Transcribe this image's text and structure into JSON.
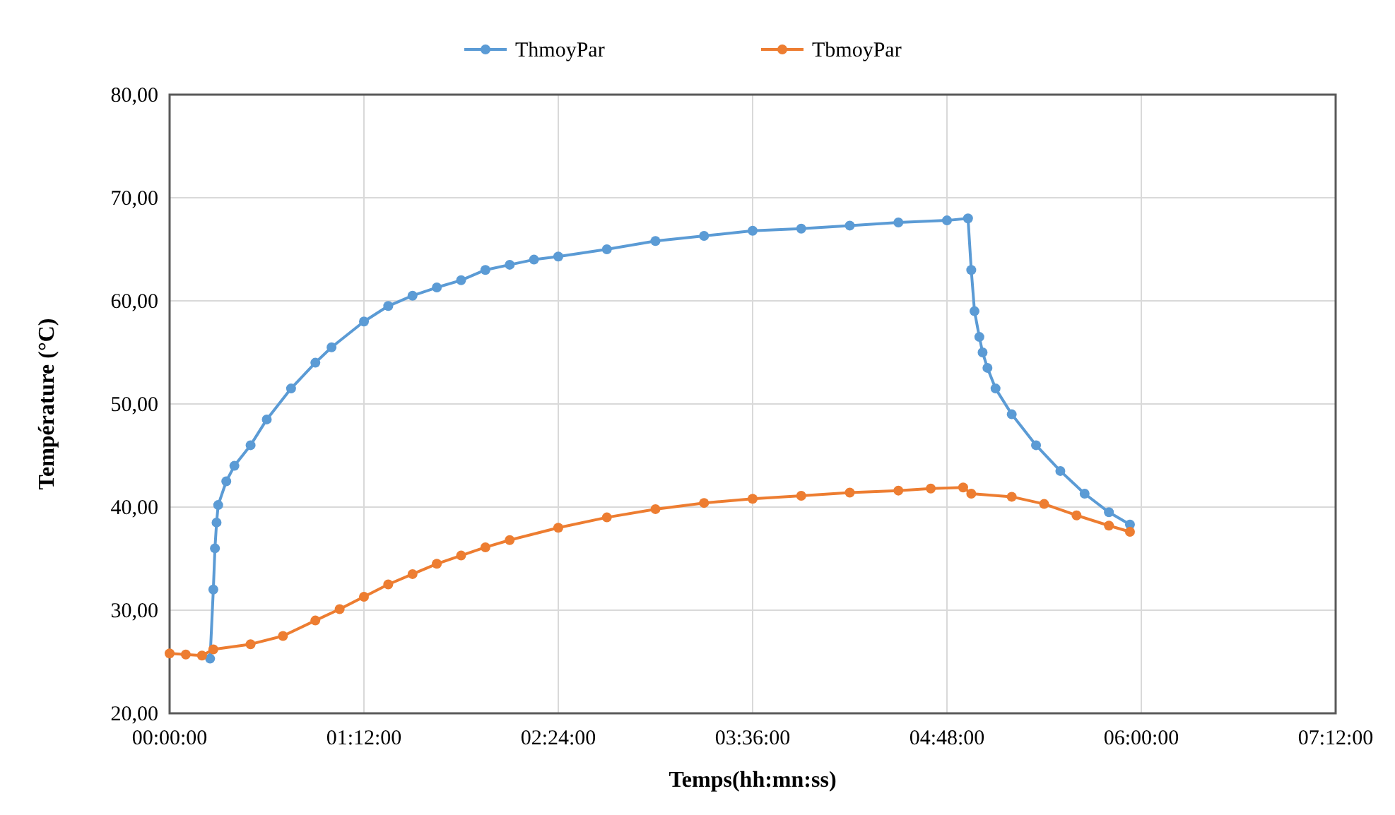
{
  "chart_data": {
    "type": "line",
    "xlabel": "Temps(hh:mn:ss)",
    "ylabel": "Température (°C)",
    "xlim": [
      0,
      7.2
    ],
    "ylim": [
      20,
      80
    ],
    "xticks": [
      {
        "value": 0,
        "label": "00:00:00"
      },
      {
        "value": 1.2,
        "label": "01:12:00"
      },
      {
        "value": 2.4,
        "label": "02:24:00"
      },
      {
        "value": 3.6,
        "label": "03:36:00"
      },
      {
        "value": 4.8,
        "label": "04:48:00"
      },
      {
        "value": 6,
        "label": "06:00:00"
      },
      {
        "value": 7.2,
        "label": "07:12:00"
      }
    ],
    "yticks": [
      {
        "value": 20,
        "label": "20,00"
      },
      {
        "value": 30,
        "label": "30,00"
      },
      {
        "value": 40,
        "label": "40,00"
      },
      {
        "value": 50,
        "label": "50,00"
      },
      {
        "value": 60,
        "label": "60,00"
      },
      {
        "value": 70,
        "label": "70,00"
      },
      {
        "value": 80,
        "label": "80,00"
      }
    ],
    "grid": true,
    "legend": "top",
    "marker": "circle",
    "line_style": "solid",
    "series": [
      {
        "name": "ThmoyPar",
        "color": "#5b9bd5",
        "x": [
          0.25,
          0.27,
          0.28,
          0.29,
          0.3,
          0.35,
          0.4,
          0.5,
          0.6,
          0.75,
          0.9,
          1.0,
          1.2,
          1.35,
          1.5,
          1.65,
          1.8,
          1.95,
          2.1,
          2.25,
          2.4,
          2.7,
          3.0,
          3.3,
          3.6,
          3.9,
          4.2,
          4.5,
          4.8,
          4.93,
          4.95,
          4.97,
          5.0,
          5.02,
          5.05,
          5.1,
          5.2,
          5.35,
          5.5,
          5.65,
          5.8,
          5.93
        ],
        "values": [
          25.3,
          32,
          36,
          38.5,
          40.2,
          42.5,
          44,
          46,
          48.5,
          51.5,
          54,
          55.5,
          58,
          59.5,
          60.5,
          61.3,
          62,
          63,
          63.5,
          64,
          64.3,
          65,
          65.8,
          66.3,
          66.8,
          67,
          67.3,
          67.6,
          67.8,
          68,
          63,
          59,
          56.5,
          55,
          53.5,
          51.5,
          49,
          46,
          43.5,
          41.3,
          39.5,
          38.3
        ]
      },
      {
        "name": "TbmoyPar",
        "color": "#ed7d31",
        "x": [
          0,
          0.1,
          0.2,
          0.27,
          0.5,
          0.7,
          0.9,
          1.05,
          1.2,
          1.35,
          1.5,
          1.65,
          1.8,
          1.95,
          2.1,
          2.4,
          2.7,
          3.0,
          3.3,
          3.6,
          3.9,
          4.2,
          4.5,
          4.7,
          4.9,
          4.95,
          5.2,
          5.4,
          5.6,
          5.8,
          5.93
        ],
        "values": [
          25.8,
          25.7,
          25.6,
          26.2,
          26.7,
          27.5,
          29,
          30.1,
          31.3,
          32.5,
          33.5,
          34.5,
          35.3,
          36.1,
          36.8,
          38,
          39,
          39.8,
          40.4,
          40.8,
          41.1,
          41.4,
          41.6,
          41.8,
          41.9,
          41.3,
          41,
          40.3,
          39.2,
          38.2,
          37.6
        ]
      }
    ]
  }
}
